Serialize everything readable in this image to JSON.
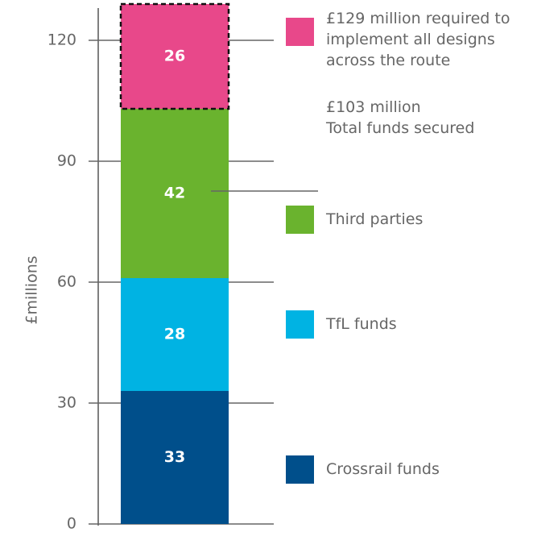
{
  "chart_data": {
    "type": "stacked_bar",
    "y_label": "£millions",
    "ylim": [
      0,
      130
    ],
    "yticks": [
      0,
      30,
      60,
      90,
      120
    ],
    "grid": true,
    "series": [
      {
        "name": "Crossrail funds",
        "color": "#004f8b",
        "values": [
          33
        ]
      },
      {
        "name": "TfL funds",
        "color": "#00b3e3",
        "values": [
          28
        ]
      },
      {
        "name": "Third parties",
        "color": "#6ab32e",
        "values": [
          42
        ]
      },
      {
        "name": "£129 million required to implement all designs across the route",
        "color": "#e8488a",
        "values": [
          26
        ],
        "dashed": true
      }
    ],
    "annotation_lines": [
      "£103 million",
      "Total funds secured"
    ]
  }
}
